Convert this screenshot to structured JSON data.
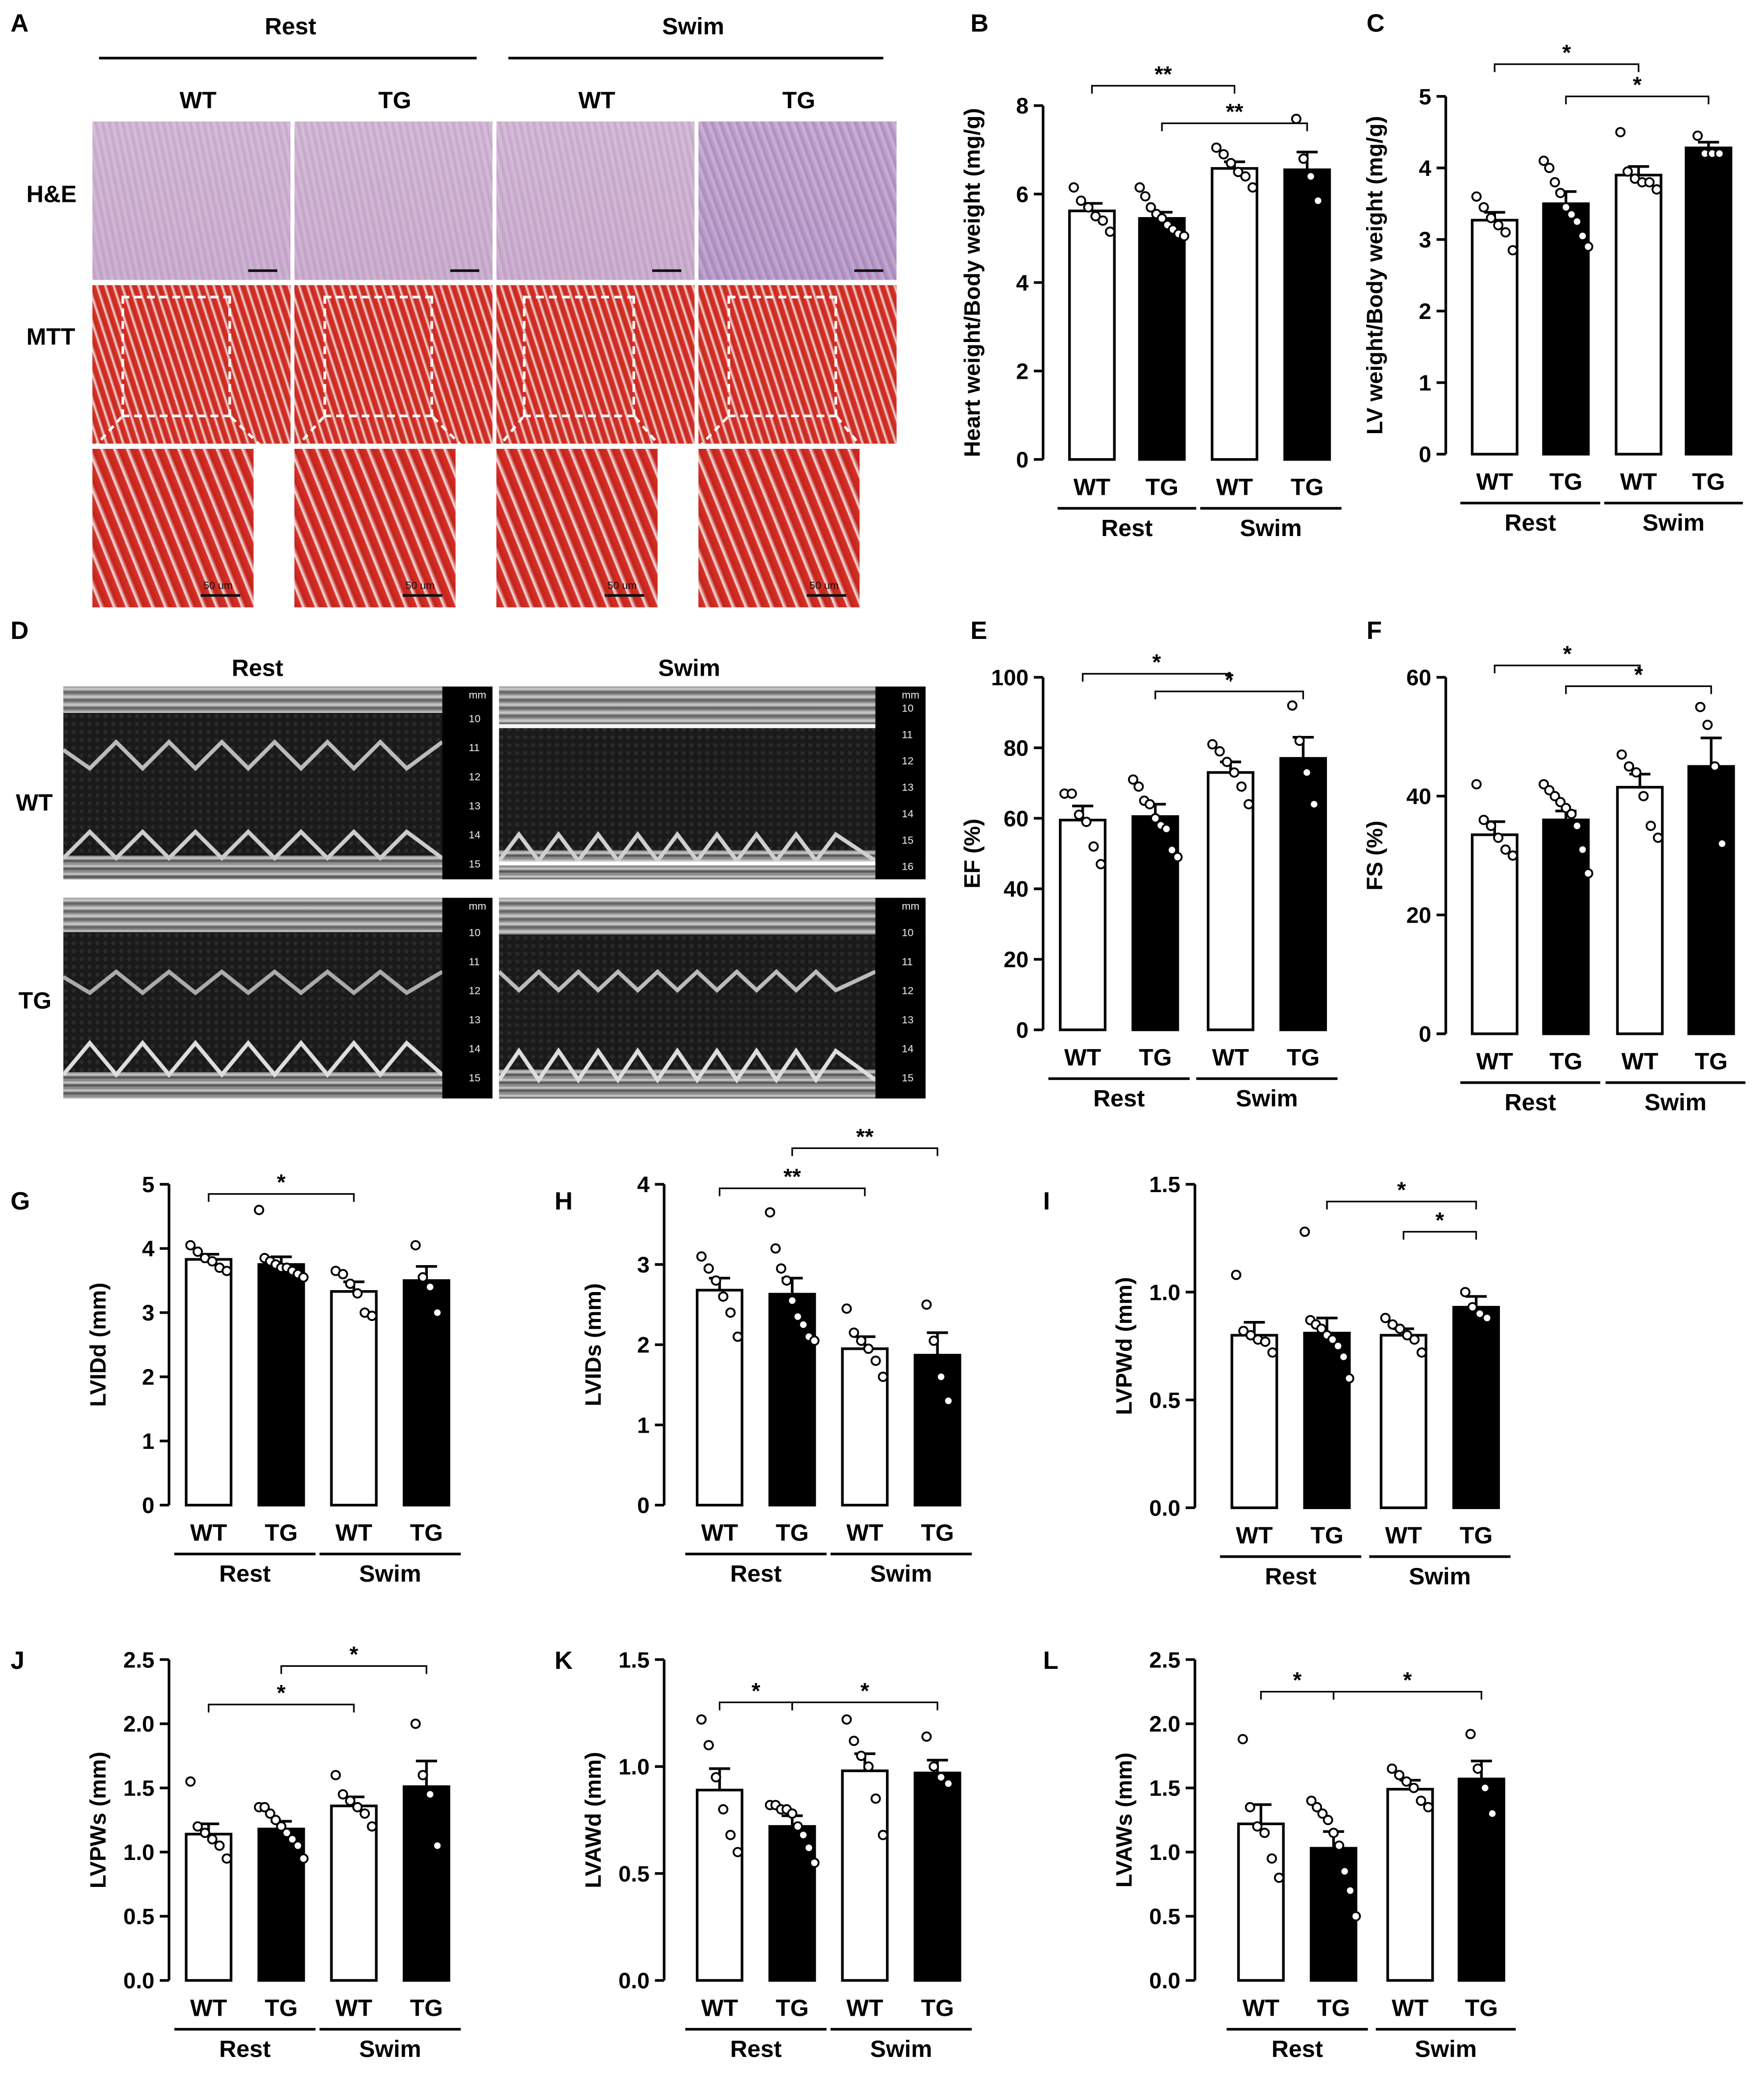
{
  "panel_letters": [
    "A",
    "B",
    "C",
    "D",
    "E",
    "F",
    "G",
    "H",
    "I",
    "J",
    "K",
    "L"
  ],
  "panel_a": {
    "group_headers": [
      "Rest",
      "Swim"
    ],
    "column_headers": [
      "WT",
      "TG",
      "WT",
      "TG"
    ],
    "row_labels": [
      "H&E",
      "MTT"
    ],
    "scale_label": "50 um"
  },
  "panel_d": {
    "group_headers": [
      "Rest",
      "Swim"
    ],
    "row_labels": [
      "WT",
      "TG"
    ],
    "ruler_unit": "mm",
    "ruler_ticks_rest": [
      "10",
      "11",
      "12",
      "13",
      "14",
      "15"
    ],
    "ruler_ticks_swim_wt": [
      "10",
      "11",
      "12",
      "13",
      "14",
      "15",
      "16"
    ],
    "ruler_ticks_swim_tg": [
      "10",
      "11",
      "12",
      "13",
      "14",
      "15"
    ]
  },
  "chart_data": [
    {
      "id": "B",
      "type": "bar",
      "ylabel": "Heart weight/Body weight (mg/g)",
      "ylim": [
        0,
        8
      ],
      "yticks": [
        0,
        2,
        4,
        6,
        8
      ],
      "ytick_labels": [
        "0",
        "2",
        "4",
        "6",
        "8"
      ],
      "categories": [
        "WT",
        "TG",
        "WT",
        "TG"
      ],
      "groups": [
        "Rest",
        "Swim"
      ],
      "values": [
        5.62,
        5.45,
        6.58,
        6.55
      ],
      "sem": [
        0.17,
        0.14,
        0.15,
        0.4
      ],
      "points": [
        [
          6.15,
          5.85,
          5.7,
          5.5,
          5.4,
          5.15
        ],
        [
          6.15,
          5.95,
          5.7,
          5.55,
          5.45,
          5.3,
          5.2,
          5.1,
          5.05
        ],
        [
          7.05,
          6.9,
          6.7,
          6.5,
          6.4,
          6.15
        ],
        [
          7.7,
          6.8,
          6.4,
          5.85
        ]
      ],
      "significance": [
        {
          "from": 0,
          "to": 2,
          "label": "**",
          "y": 8.45
        },
        {
          "from": 1,
          "to": 3,
          "label": "**",
          "y": 7.6
        }
      ]
    },
    {
      "id": "C",
      "type": "bar",
      "ylabel": "LV weight/Body weight (mg/g)",
      "ylim": [
        0,
        5
      ],
      "yticks": [
        0,
        1,
        2,
        3,
        4,
        5
      ],
      "ytick_labels": [
        "0",
        "1",
        "2",
        "3",
        "4",
        "5"
      ],
      "categories": [
        "WT",
        "TG",
        "WT",
        "TG"
      ],
      "groups": [
        "Rest",
        "Swim"
      ],
      "values": [
        3.27,
        3.5,
        3.9,
        4.28
      ],
      "sem": [
        0.11,
        0.17,
        0.12,
        0.08
      ],
      "points": [
        [
          3.6,
          3.45,
          3.3,
          3.2,
          3.1,
          2.85
        ],
        [
          4.1,
          4.0,
          3.8,
          3.65,
          3.45,
          3.35,
          3.25,
          3.05,
          2.9
        ],
        [
          4.5,
          3.95,
          3.85,
          3.8,
          3.8,
          3.7
        ],
        [
          4.45,
          4.2,
          4.2,
          4.2
        ]
      ],
      "significance": [
        {
          "from": 0,
          "to": 2,
          "label": "*",
          "y": 5.45
        },
        {
          "from": 1,
          "to": 3,
          "label": "*",
          "y": 5.0
        }
      ]
    },
    {
      "id": "E",
      "type": "bar",
      "ylabel": "EF (%)",
      "ylim": [
        0,
        100
      ],
      "yticks": [
        0,
        20,
        40,
        60,
        80,
        100
      ],
      "ytick_labels": [
        "0",
        "20",
        "40",
        "60",
        "80",
        "100"
      ],
      "categories": [
        "WT",
        "TG",
        "WT",
        "TG"
      ],
      "groups": [
        "Rest",
        "Swim"
      ],
      "values": [
        59.5,
        60.5,
        73.0,
        77.0
      ],
      "sem": [
        4.0,
        3.5,
        3.0,
        6.0
      ],
      "points": [
        [
          67,
          67,
          61,
          59,
          52,
          47
        ],
        [
          71,
          69,
          65,
          64,
          60,
          58,
          57,
          51,
          49
        ],
        [
          81,
          79,
          76,
          73,
          69,
          64
        ],
        [
          92,
          82,
          73,
          64
        ]
      ],
      "significance": [
        {
          "from": 0,
          "to": 2,
          "label": "*",
          "y": 101
        },
        {
          "from": 1,
          "to": 3,
          "label": "*",
          "y": 96
        }
      ]
    },
    {
      "id": "F",
      "type": "bar",
      "ylabel": "FS (%)",
      "ylim": [
        0,
        60
      ],
      "yticks": [
        0,
        20,
        40,
        60
      ],
      "ytick_labels": [
        "0",
        "20",
        "40",
        "60"
      ],
      "categories": [
        "WT",
        "TG",
        "WT",
        "TG"
      ],
      "groups": [
        "Rest",
        "Swim"
      ],
      "values": [
        33.5,
        36.0,
        41.5,
        45.0
      ],
      "sem": [
        2.2,
        1.5,
        2.2,
        4.8
      ],
      "points": [
        [
          42,
          36,
          35,
          33,
          31,
          30
        ],
        [
          42,
          41,
          40,
          39,
          38,
          37,
          35,
          31,
          27
        ],
        [
          47,
          45,
          44,
          40,
          35,
          33
        ],
        [
          55,
          52,
          45,
          32
        ]
      ],
      "significance": [
        {
          "from": 0,
          "to": 2,
          "label": "*",
          "y": 62
        },
        {
          "from": 1,
          "to": 3,
          "label": "*",
          "y": 58.5
        }
      ]
    },
    {
      "id": "G",
      "type": "bar",
      "ylabel": "LVIDd (mm)",
      "ylim": [
        0,
        5
      ],
      "yticks": [
        0,
        1,
        2,
        3,
        4,
        5
      ],
      "ytick_labels": [
        "0",
        "1",
        "2",
        "3",
        "4",
        "5"
      ],
      "categories": [
        "WT",
        "TG",
        "WT",
        "TG"
      ],
      "groups": [
        "Rest",
        "Swim"
      ],
      "values": [
        3.83,
        3.75,
        3.33,
        3.5
      ],
      "sem": [
        0.08,
        0.12,
        0.15,
        0.22
      ],
      "points": [
        [
          4.05,
          3.95,
          3.85,
          3.8,
          3.7,
          3.65
        ],
        [
          4.6,
          3.85,
          3.8,
          3.75,
          3.7,
          3.7,
          3.65,
          3.6,
          3.55
        ],
        [
          3.65,
          3.6,
          3.45,
          3.3,
          3.0,
          2.95
        ],
        [
          4.05,
          3.55,
          3.4,
          3.0
        ]
      ],
      "significance": [
        {
          "from": 0,
          "to": 2,
          "label": "*",
          "y": 4.85
        }
      ]
    },
    {
      "id": "H",
      "type": "bar",
      "ylabel": "LVIDs (mm)",
      "ylim": [
        0,
        4
      ],
      "yticks": [
        0,
        1,
        2,
        3,
        4
      ],
      "ytick_labels": [
        "0",
        "1",
        "2",
        "3",
        "4"
      ],
      "categories": [
        "WT",
        "TG",
        "WT",
        "TG"
      ],
      "groups": [
        "Rest",
        "Swim"
      ],
      "values": [
        2.68,
        2.63,
        1.95,
        1.87
      ],
      "sem": [
        0.15,
        0.2,
        0.15,
        0.28
      ],
      "points": [
        [
          3.1,
          2.95,
          2.8,
          2.6,
          2.4,
          2.1
        ],
        [
          3.65,
          3.2,
          2.95,
          2.8,
          2.55,
          2.35,
          2.25,
          2.1,
          2.05
        ],
        [
          2.45,
          2.15,
          2.05,
          1.95,
          1.8,
          1.6
        ],
        [
          2.5,
          2.05,
          1.6,
          1.3
        ]
      ],
      "significance": [
        {
          "from": 0,
          "to": 2,
          "label": "**",
          "y": 3.95
        },
        {
          "from": 1,
          "to": 3,
          "label": "**",
          "y": 4.45
        }
      ]
    },
    {
      "id": "I",
      "type": "bar",
      "ylabel": "LVPWd (mm)",
      "ylim": [
        0,
        1.5
      ],
      "yticks": [
        0,
        0.5,
        1.0,
        1.5
      ],
      "ytick_labels": [
        "0.0",
        "0.5",
        "1.0",
        "1.5"
      ],
      "categories": [
        "WT",
        "TG",
        "WT",
        "TG"
      ],
      "groups": [
        "Rest",
        "Swim"
      ],
      "values": [
        0.8,
        0.81,
        0.8,
        0.93
      ],
      "sem": [
        0.06,
        0.07,
        0.03,
        0.05
      ],
      "points": [
        [
          1.08,
          0.82,
          0.8,
          0.78,
          0.77,
          0.72
        ],
        [
          1.28,
          0.87,
          0.85,
          0.83,
          0.8,
          0.78,
          0.75,
          0.7,
          0.6
        ],
        [
          0.88,
          0.85,
          0.83,
          0.8,
          0.78,
          0.72
        ],
        [
          1.0,
          0.93,
          0.9,
          0.88
        ]
      ],
      "significance": [
        {
          "from": 1,
          "to": 3,
          "label": "*",
          "y": 1.42
        },
        {
          "from": 2,
          "to": 3,
          "label": "*",
          "y": 1.28
        }
      ]
    },
    {
      "id": "J",
      "type": "bar",
      "ylabel": "LVPWs (mm)",
      "ylim": [
        0,
        2.5
      ],
      "yticks": [
        0,
        0.5,
        1.0,
        1.5,
        2.0,
        2.5
      ],
      "ytick_labels": [
        "0.0",
        "0.5",
        "1.0",
        "1.5",
        "2.0",
        "2.5"
      ],
      "categories": [
        "WT",
        "TG",
        "WT",
        "TG"
      ],
      "groups": [
        "Rest",
        "Swim"
      ],
      "values": [
        1.14,
        1.18,
        1.36,
        1.51
      ],
      "sem": [
        0.08,
        0.06,
        0.07,
        0.2
      ],
      "points": [
        [
          1.55,
          1.2,
          1.15,
          1.1,
          1.05,
          0.95
        ],
        [
          1.35,
          1.35,
          1.3,
          1.25,
          1.2,
          1.15,
          1.1,
          1.05,
          0.95
        ],
        [
          1.6,
          1.45,
          1.4,
          1.35,
          1.3,
          1.2
        ],
        [
          2.0,
          1.6,
          1.45,
          1.05
        ]
      ],
      "significance": [
        {
          "from": 0,
          "to": 2,
          "label": "*",
          "y": 2.15
        },
        {
          "from": 1,
          "to": 3,
          "label": "*",
          "y": 2.45
        }
      ]
    },
    {
      "id": "K",
      "type": "bar",
      "ylabel": "LVAWd (mm)",
      "ylim": [
        0,
        1.5
      ],
      "yticks": [
        0,
        0.5,
        1.0,
        1.5
      ],
      "ytick_labels": [
        "0.0",
        "0.5",
        "1.0",
        "1.5"
      ],
      "categories": [
        "WT",
        "TG",
        "WT",
        "TG"
      ],
      "groups": [
        "Rest",
        "Swim"
      ],
      "values": [
        0.89,
        0.72,
        0.98,
        0.97
      ],
      "sem": [
        0.1,
        0.05,
        0.08,
        0.06
      ],
      "points": [
        [
          1.22,
          1.1,
          0.95,
          0.8,
          0.68,
          0.6
        ],
        [
          0.82,
          0.82,
          0.8,
          0.8,
          0.78,
          0.72,
          0.68,
          0.62,
          0.55
        ],
        [
          1.22,
          1.12,
          1.05,
          1.0,
          0.85,
          0.68
        ],
        [
          1.14,
          1.0,
          0.95,
          0.92
        ]
      ],
      "significance": [
        {
          "from": 0,
          "to": 1,
          "label": "*",
          "y": 1.3
        },
        {
          "from": 1,
          "to": 3,
          "label": "*",
          "y": 1.3
        }
      ]
    },
    {
      "id": "L",
      "type": "bar",
      "ylabel": "LVAWs (mm)",
      "ylim": [
        0,
        2.5
      ],
      "yticks": [
        0,
        0.5,
        1.0,
        1.5,
        2.0,
        2.5
      ],
      "ytick_labels": [
        "0.0",
        "0.5",
        "1.0",
        "1.5",
        "2.0",
        "2.5"
      ],
      "categories": [
        "WT",
        "TG",
        "WT",
        "TG"
      ],
      "groups": [
        "Rest",
        "Swim"
      ],
      "values": [
        1.22,
        1.03,
        1.49,
        1.57
      ],
      "sem": [
        0.15,
        0.13,
        0.07,
        0.14
      ],
      "points": [
        [
          1.88,
          1.35,
          1.2,
          1.15,
          0.95,
          0.8
        ],
        [
          1.4,
          1.35,
          1.3,
          1.25,
          1.15,
          1.05,
          0.85,
          0.7,
          0.5
        ],
        [
          1.65,
          1.6,
          1.55,
          1.5,
          1.4,
          1.35
        ],
        [
          1.92,
          1.65,
          1.5,
          1.3
        ]
      ],
      "significance": [
        {
          "from": 0,
          "to": 1,
          "label": "*",
          "y": 2.25
        },
        {
          "from": 1,
          "to": 3,
          "label": "*",
          "y": 2.25
        }
      ]
    }
  ]
}
